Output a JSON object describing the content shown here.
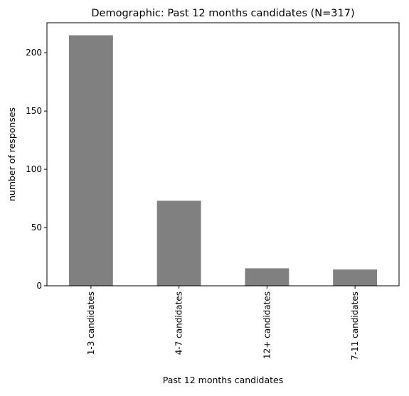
{
  "chart_data": {
    "type": "bar",
    "title": "Demographic: Past 12 months candidates (N=317)",
    "xlabel": "Past 12 months candidates",
    "ylabel": "number of responses",
    "categories": [
      "1-3 candidates",
      "4-7 candidates",
      "12+ candidates",
      "7-11 candidates"
    ],
    "values": [
      215,
      73,
      15,
      14
    ],
    "ylim": [
      0,
      225.75
    ],
    "yticks": [
      0,
      50,
      100,
      150,
      200
    ],
    "ytick_labels": [
      "0",
      "50",
      "100",
      "150",
      "200"
    ],
    "bar_color": "#808080",
    "grid": false,
    "legend": "none"
  }
}
